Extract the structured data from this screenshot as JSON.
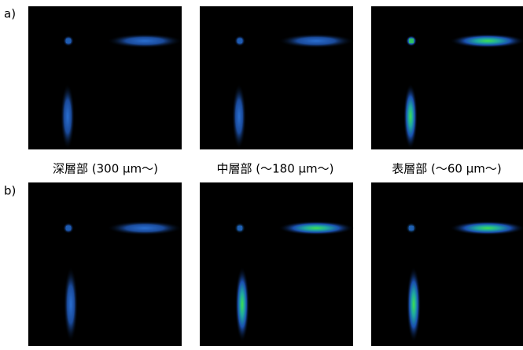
{
  "labels": [
    "a)",
    "b)"
  ],
  "captions": [
    "深層部 (300 μm〜)",
    "中層部 (〜180 μm〜)",
    "表層部 (〜60 μm〜)"
  ]
}
